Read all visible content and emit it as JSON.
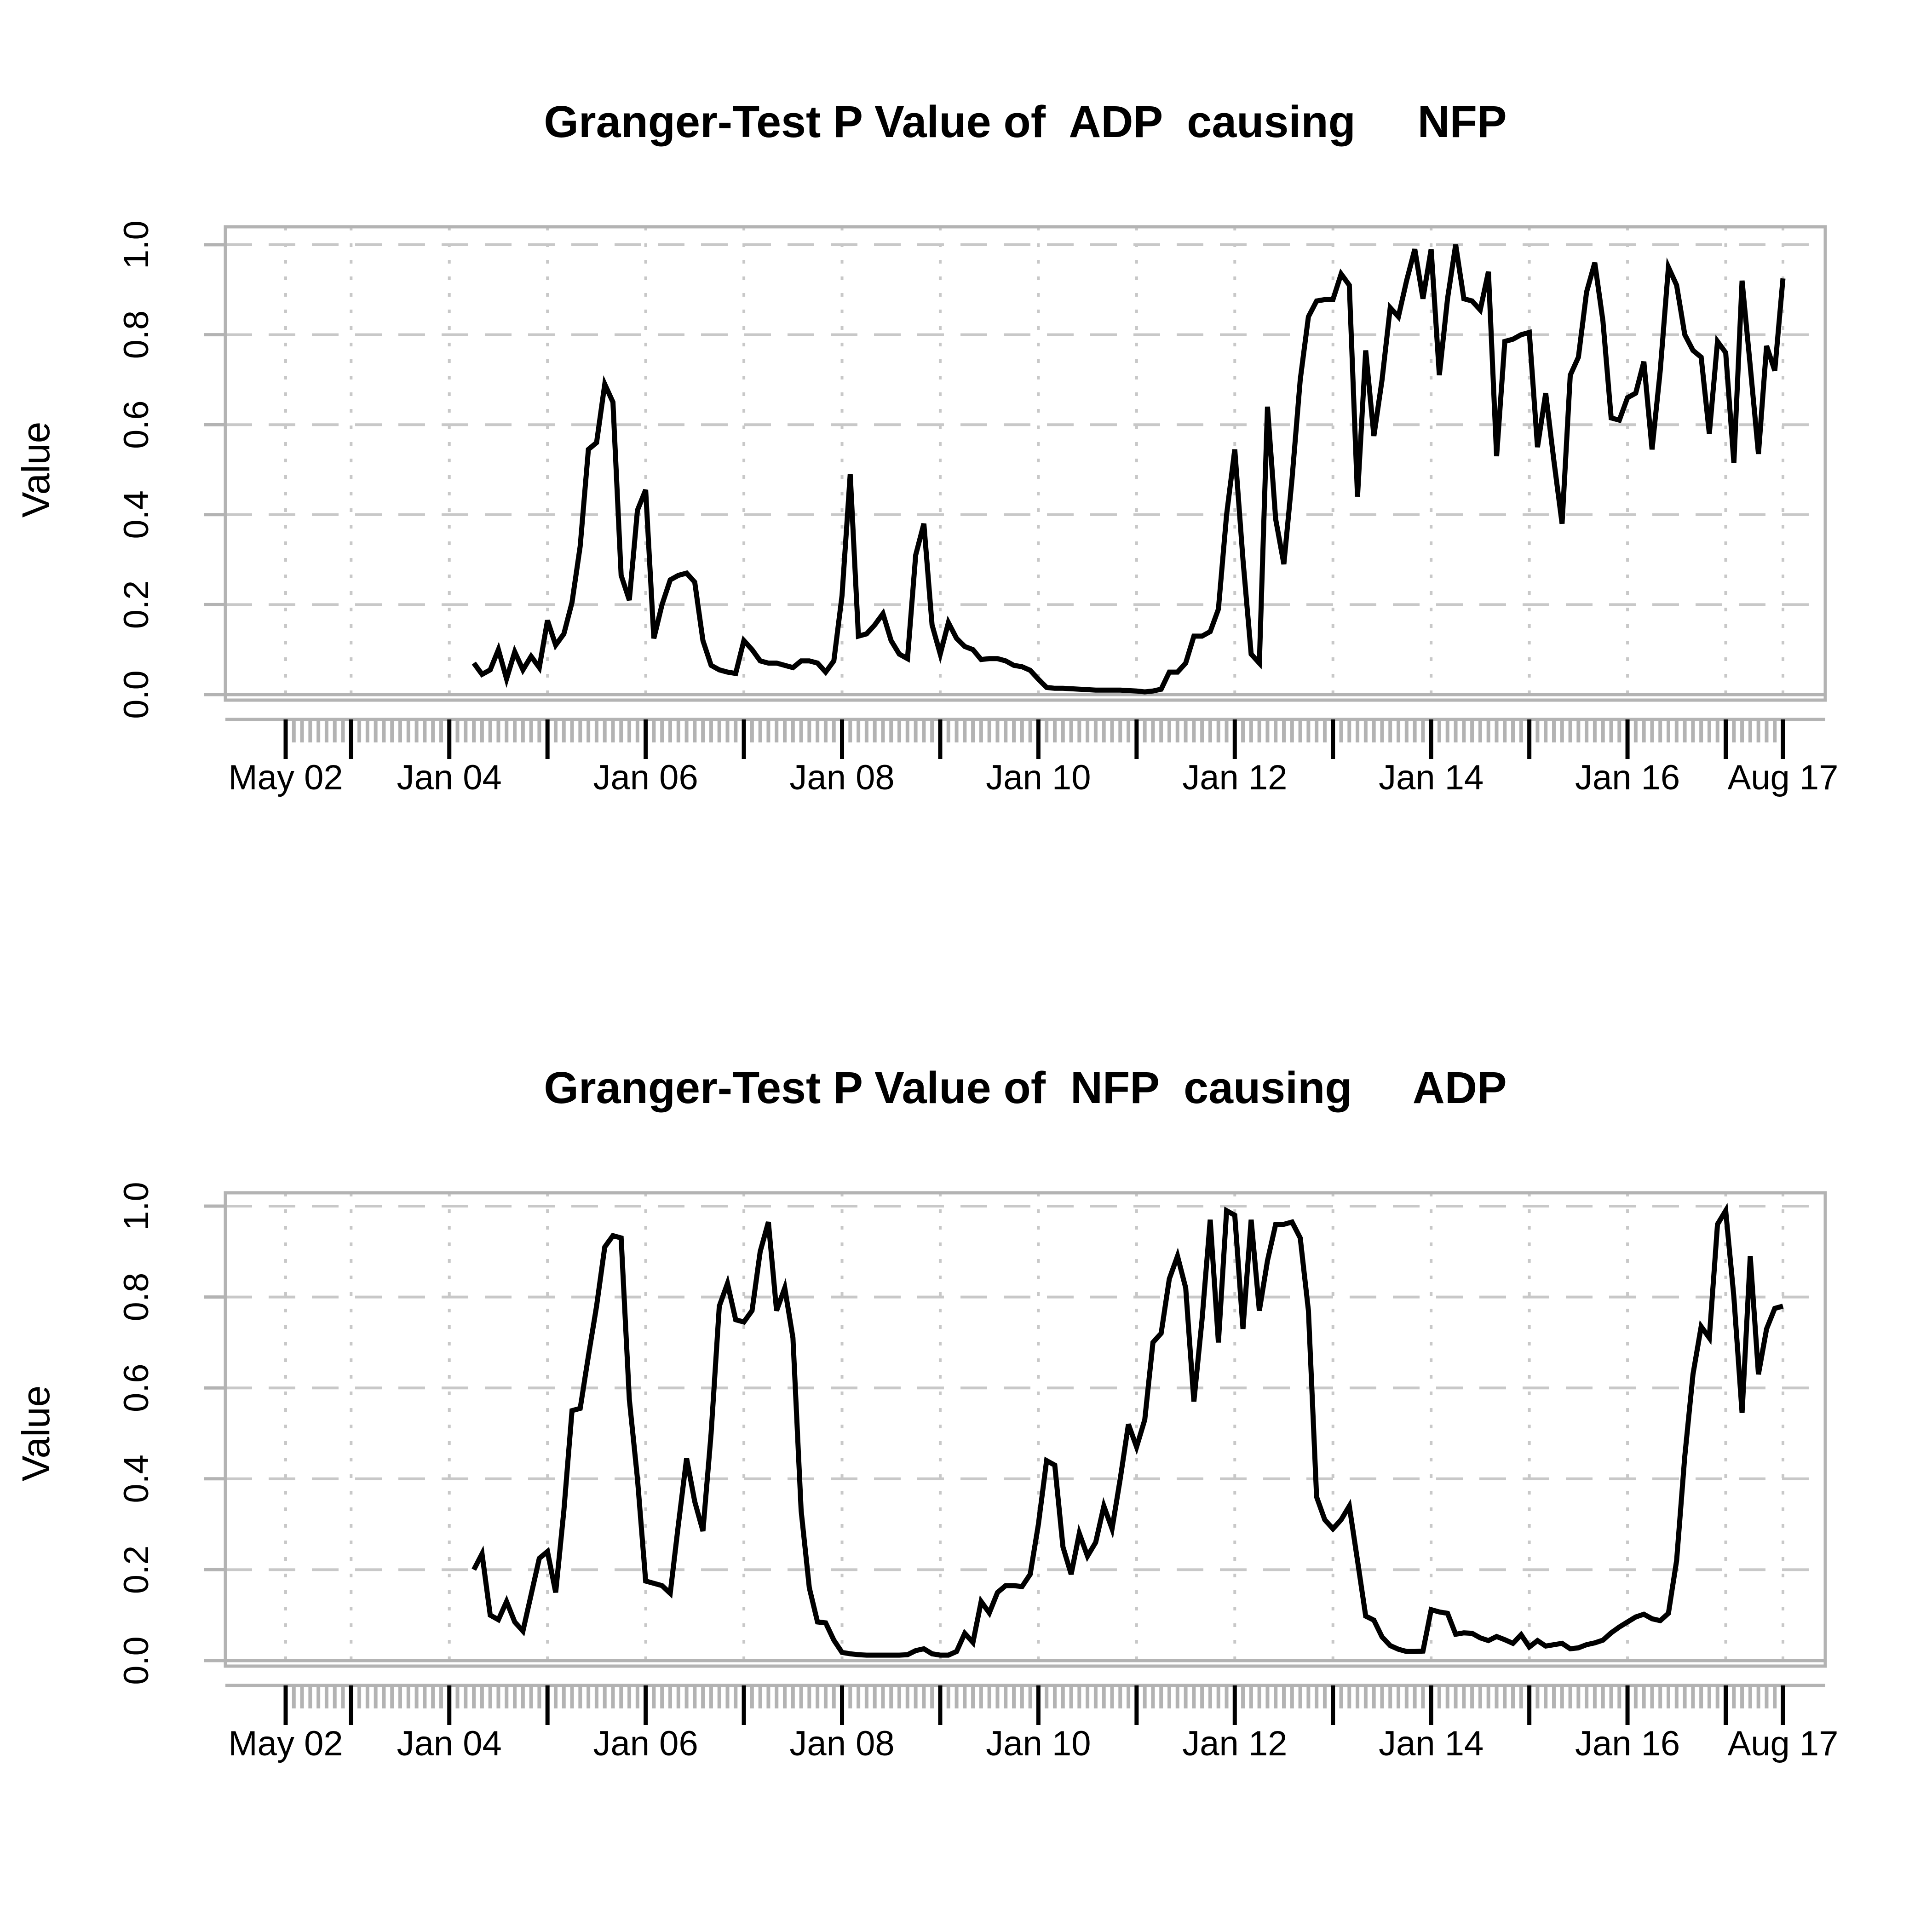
{
  "figure": {
    "background": "#ffffff",
    "line_color": "#000000",
    "axis_color": "#b3b3b3",
    "grid_color": "#c8c8c8",
    "major_tick_color": "#000000"
  },
  "chart_data": [
    {
      "type": "line",
      "title": "Granger-Test P Value of  ADP  causing     NFP",
      "ylabel": "Value",
      "xlabel": "",
      "grid": true,
      "legend": "none",
      "ylim": [
        0.0,
        1.0
      ],
      "y_tick_labels": [
        "0.0",
        "0.2",
        "0.4",
        "0.6",
        "0.8",
        "1.0"
      ],
      "x_tick_labels": [
        "May 02",
        "Jan 04",
        "Jan 06",
        "Jan 08",
        "Jan 10",
        "Jan 12",
        "Jan 14",
        "Jan 16",
        "Aug 17"
      ],
      "x_tick_months": [
        0,
        20,
        44,
        68,
        92,
        116,
        140,
        164,
        183
      ],
      "year_tick_months": [
        0,
        8,
        20,
        32,
        44,
        56,
        68,
        80,
        92,
        104,
        116,
        128,
        140,
        152,
        164,
        176,
        183
      ],
      "x_start_month": 23,
      "values": [
        0.07,
        0.045,
        0.055,
        0.1,
        0.035,
        0.095,
        0.055,
        0.085,
        0.06,
        0.165,
        0.11,
        0.135,
        0.205,
        0.33,
        0.545,
        0.56,
        0.69,
        0.65,
        0.265,
        0.21,
        0.41,
        0.455,
        0.125,
        0.2,
        0.255,
        0.265,
        0.27,
        0.25,
        0.12,
        0.065,
        0.055,
        0.05,
        0.047,
        0.12,
        0.1,
        0.075,
        0.07,
        0.07,
        0.065,
        0.06,
        0.075,
        0.075,
        0.07,
        0.05,
        0.075,
        0.22,
        0.49,
        0.13,
        0.135,
        0.155,
        0.18,
        0.12,
        0.09,
        0.08,
        0.31,
        0.38,
        0.155,
        0.09,
        0.16,
        0.125,
        0.107,
        0.1,
        0.078,
        0.08,
        0.08,
        0.075,
        0.065,
        0.062,
        0.054,
        0.034,
        0.016,
        0.014,
        0.014,
        0.013,
        0.012,
        0.011,
        0.01,
        0.01,
        0.01,
        0.01,
        0.009,
        0.008,
        0.006,
        0.008,
        0.012,
        0.05,
        0.05,
        0.07,
        0.13,
        0.13,
        0.14,
        0.19,
        0.4,
        0.545,
        0.3,
        0.09,
        0.07,
        0.64,
        0.39,
        0.29,
        0.48,
        0.7,
        0.84,
        0.875,
        0.878,
        0.878,
        0.935,
        0.91,
        0.44,
        0.765,
        0.575,
        0.7,
        0.86,
        0.84,
        0.92,
        0.99,
        0.88,
        0.99,
        0.71,
        0.88,
        1.0,
        0.88,
        0.875,
        0.855,
        0.94,
        0.53,
        0.785,
        0.79,
        0.8,
        0.805,
        0.55,
        0.67,
        0.52,
        0.38,
        0.71,
        0.75,
        0.895,
        0.96,
        0.83,
        0.615,
        0.61,
        0.66,
        0.67,
        0.74,
        0.545,
        0.72,
        0.95,
        0.91,
        0.8,
        0.765,
        0.75,
        0.58,
        0.785,
        0.76,
        0.515,
        0.92,
        0.73,
        0.535,
        0.775,
        0.72,
        0.925
      ]
    },
    {
      "type": "line",
      "title": "Granger-Test P Value of  NFP  causing     ADP",
      "ylabel": "Value",
      "xlabel": "",
      "grid": true,
      "legend": "none",
      "ylim": [
        0.0,
        1.0
      ],
      "y_tick_labels": [
        "0.0",
        "0.2",
        "0.4",
        "0.6",
        "0.8",
        "1.0"
      ],
      "x_tick_labels": [
        "May 02",
        "Jan 04",
        "Jan 06",
        "Jan 08",
        "Jan 10",
        "Jan 12",
        "Jan 14",
        "Jan 16",
        "Aug 17"
      ],
      "x_tick_months": [
        0,
        20,
        44,
        68,
        92,
        116,
        140,
        164,
        183
      ],
      "year_tick_months": [
        0,
        8,
        20,
        32,
        44,
        56,
        68,
        80,
        92,
        104,
        116,
        128,
        140,
        152,
        164,
        176,
        183
      ],
      "x_start_month": 23,
      "values": [
        0.2,
        0.235,
        0.1,
        0.09,
        0.13,
        0.085,
        0.065,
        0.145,
        0.225,
        0.24,
        0.15,
        0.33,
        0.55,
        0.555,
        0.67,
        0.78,
        0.91,
        0.935,
        0.93,
        0.575,
        0.4,
        0.175,
        0.17,
        0.165,
        0.148,
        0.3,
        0.445,
        0.35,
        0.285,
        0.5,
        0.78,
        0.83,
        0.75,
        0.745,
        0.77,
        0.9,
        0.965,
        0.77,
        0.82,
        0.71,
        0.33,
        0.16,
        0.085,
        0.083,
        0.045,
        0.018,
        0.015,
        0.013,
        0.012,
        0.012,
        0.012,
        0.012,
        0.012,
        0.013,
        0.022,
        0.026,
        0.015,
        0.012,
        0.012,
        0.02,
        0.06,
        0.04,
        0.13,
        0.105,
        0.15,
        0.165,
        0.165,
        0.163,
        0.19,
        0.3,
        0.44,
        0.43,
        0.25,
        0.19,
        0.28,
        0.23,
        0.26,
        0.34,
        0.29,
        0.4,
        0.52,
        0.47,
        0.53,
        0.7,
        0.72,
        0.84,
        0.89,
        0.82,
        0.57,
        0.75,
        0.97,
        0.7,
        0.99,
        0.98,
        0.73,
        0.97,
        0.77,
        0.88,
        0.96,
        0.96,
        0.965,
        0.93,
        0.77,
        0.36,
        0.31,
        0.29,
        0.31,
        0.34,
        0.22,
        0.098,
        0.089,
        0.052,
        0.033,
        0.025,
        0.02,
        0.02,
        0.021,
        0.112,
        0.107,
        0.104,
        0.058,
        0.061,
        0.06,
        0.05,
        0.044,
        0.053,
        0.046,
        0.038,
        0.057,
        0.03,
        0.044,
        0.032,
        0.035,
        0.038,
        0.026,
        0.028,
        0.035,
        0.039,
        0.045,
        0.061,
        0.074,
        0.085,
        0.096,
        0.102,
        0.092,
        0.088,
        0.104,
        0.22,
        0.45,
        0.63,
        0.735,
        0.71,
        0.96,
        0.99,
        0.8,
        0.545,
        0.89,
        0.63,
        0.73,
        0.775,
        0.78
      ]
    }
  ]
}
